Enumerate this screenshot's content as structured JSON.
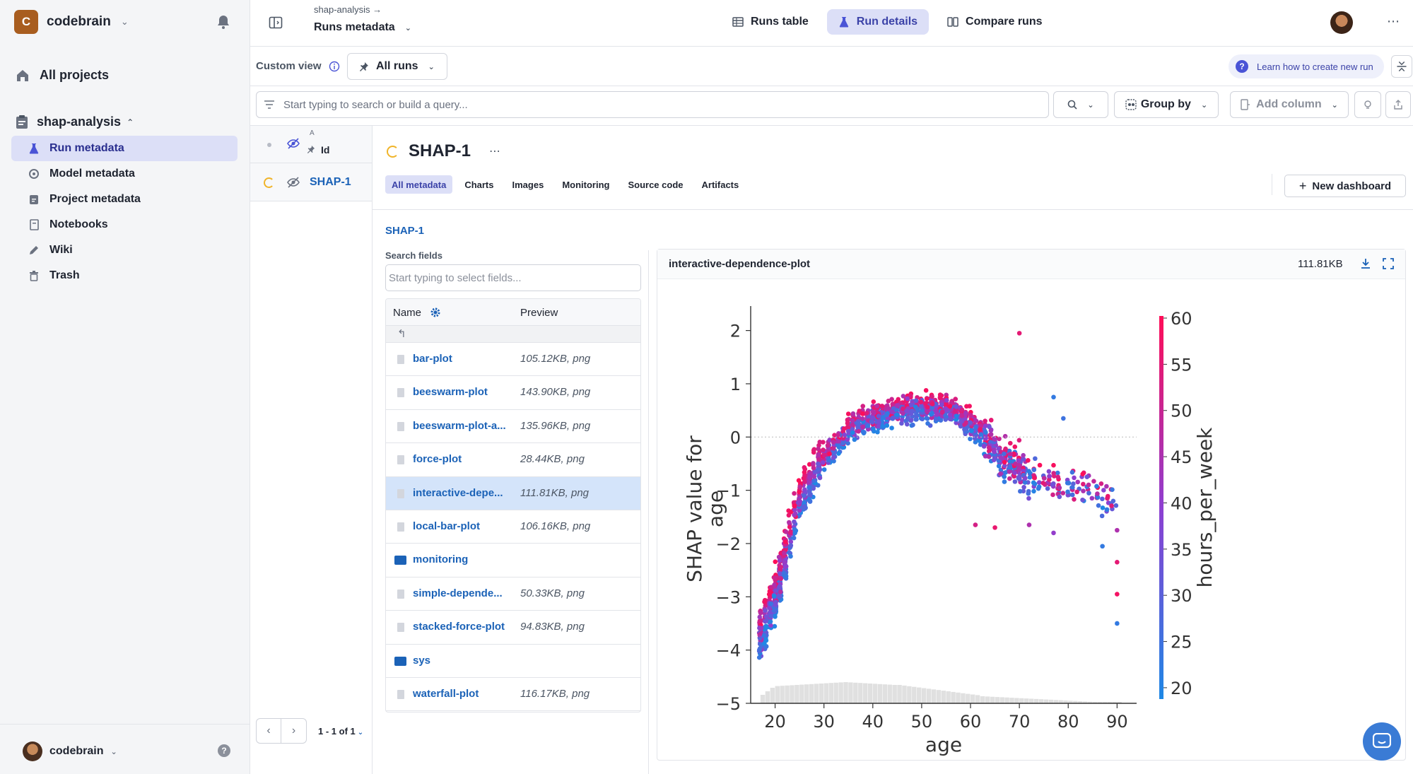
{
  "workspace": {
    "initial": "C",
    "name": "codebrain"
  },
  "sidebar": {
    "all_projects": "All projects",
    "project": "shap-analysis",
    "items": [
      {
        "label": "Run metadata",
        "icon": "flask-icon",
        "active": true
      },
      {
        "label": "Model metadata",
        "icon": "model-icon",
        "active": false
      },
      {
        "label": "Project metadata",
        "icon": "clipboard-icon",
        "active": false
      },
      {
        "label": "Notebooks",
        "icon": "notebook-icon",
        "active": false
      },
      {
        "label": "Wiki",
        "icon": "pencil-icon",
        "active": false
      },
      {
        "label": "Trash",
        "icon": "trash-icon",
        "active": false
      }
    ],
    "user": "codebrain"
  },
  "topbar": {
    "breadcrumb": "shap-analysis",
    "title": "Runs metadata",
    "tabs": [
      {
        "label": "Runs table",
        "active": false
      },
      {
        "label": "Run details",
        "active": true
      },
      {
        "label": "Compare runs",
        "active": false
      }
    ]
  },
  "viewbar": {
    "custom_view": "Custom view",
    "all_runs": "All runs",
    "learn": "Learn how to create new run"
  },
  "search": {
    "placeholder": "Start typing to search or build a query...",
    "group_by": "Group by",
    "add_column": "Add column"
  },
  "runs": {
    "sort_marker": "A",
    "id_header": "Id",
    "rows": [
      {
        "id": "SHAP-1"
      }
    ],
    "pagination": "1 - 1 of 1"
  },
  "run": {
    "title": "SHAP-1",
    "tabs": [
      {
        "label": "All metadata",
        "active": true
      },
      {
        "label": "Charts",
        "active": false
      },
      {
        "label": "Images",
        "active": false
      },
      {
        "label": "Monitoring",
        "active": false
      },
      {
        "label": "Source code",
        "active": false
      },
      {
        "label": "Artifacts",
        "active": false
      }
    ],
    "new_dashboard": "New dashboard",
    "path": "SHAP-1"
  },
  "fields": {
    "search_label": "Search fields",
    "search_placeholder": "Start typing to select fields...",
    "col_name": "Name",
    "col_preview": "Preview",
    "up_glyph": "↰",
    "rows": [
      {
        "name": "bar-plot",
        "preview": "105.12KB, png",
        "type": "file"
      },
      {
        "name": "beeswarm-plot",
        "preview": "143.90KB, png",
        "type": "file"
      },
      {
        "name": "beeswarm-plot-a...",
        "preview": "135.96KB, png",
        "type": "file"
      },
      {
        "name": "force-plot",
        "preview": "28.44KB, png",
        "type": "file"
      },
      {
        "name": "interactive-depe...",
        "preview": "111.81KB, png",
        "type": "file",
        "selected": true
      },
      {
        "name": "local-bar-plot",
        "preview": "106.16KB, png",
        "type": "file"
      },
      {
        "name": "monitoring",
        "preview": "",
        "type": "folder"
      },
      {
        "name": "simple-depende...",
        "preview": "50.33KB, png",
        "type": "file"
      },
      {
        "name": "stacked-force-plot",
        "preview": "94.83KB, png",
        "type": "file"
      },
      {
        "name": "sys",
        "preview": "",
        "type": "folder"
      },
      {
        "name": "waterfall-plot",
        "preview": "116.17KB, png",
        "type": "file"
      }
    ]
  },
  "preview": {
    "title": "interactive-dependence-plot",
    "size": "111.81KB"
  },
  "chart_data": {
    "type": "scatter",
    "title": "",
    "xlabel": "age",
    "ylabel_line1": "SHAP value for",
    "ylabel_line2": "age",
    "color_label": "hours_per_week",
    "xlim": [
      15,
      94
    ],
    "ylim": [
      -5,
      2.3
    ],
    "x_ticks": [
      20,
      30,
      40,
      50,
      60,
      70,
      80,
      90
    ],
    "y_ticks": [
      2,
      1,
      0,
      -1,
      -2,
      -3,
      -4,
      -5
    ],
    "y_tick_labels": [
      "2",
      "1",
      "0",
      "−1",
      "−2",
      "−3",
      "−4",
      "−5"
    ],
    "color_ticks": [
      60,
      55,
      50,
      45,
      40,
      35,
      30,
      25,
      20
    ],
    "color_range": [
      18,
      60
    ],
    "colors": {
      "low": "#1e88e5",
      "mid": "#8e3fd1",
      "high": "#ff0d57"
    },
    "trend": [
      {
        "x": 17,
        "y": -3.8
      },
      {
        "x": 19,
        "y": -3.3
      },
      {
        "x": 21,
        "y": -2.8
      },
      {
        "x": 23,
        "y": -2.0
      },
      {
        "x": 25,
        "y": -1.3
      },
      {
        "x": 28,
        "y": -0.7
      },
      {
        "x": 32,
        "y": -0.2
      },
      {
        "x": 37,
        "y": 0.25
      },
      {
        "x": 43,
        "y": 0.45
      },
      {
        "x": 50,
        "y": 0.55
      },
      {
        "x": 57,
        "y": 0.5
      },
      {
        "x": 62,
        "y": 0.1
      },
      {
        "x": 68,
        "y": -0.5
      },
      {
        "x": 75,
        "y": -0.8
      },
      {
        "x": 82,
        "y": -0.9
      },
      {
        "x": 90,
        "y": -1.2
      }
    ],
    "outliers": [
      {
        "x": 70,
        "y": 1.95,
        "h": 55
      },
      {
        "x": 72,
        "y": -1.65,
        "h": 45
      },
      {
        "x": 77,
        "y": -1.8,
        "h": 40
      },
      {
        "x": 87,
        "y": -2.05,
        "h": 22
      },
      {
        "x": 90,
        "y": -3.5,
        "h": 22
      },
      {
        "x": 90,
        "y": -2.35,
        "h": 55
      },
      {
        "x": 90,
        "y": -2.95,
        "h": 58
      },
      {
        "x": 90,
        "y": -1.75,
        "h": 45
      },
      {
        "x": 77,
        "y": 0.75,
        "h": 22
      },
      {
        "x": 79,
        "y": 0.35,
        "h": 24
      },
      {
        "x": 61,
        "y": -1.65,
        "h": 52
      },
      {
        "x": 65,
        "y": -1.7,
        "h": 56
      }
    ]
  }
}
